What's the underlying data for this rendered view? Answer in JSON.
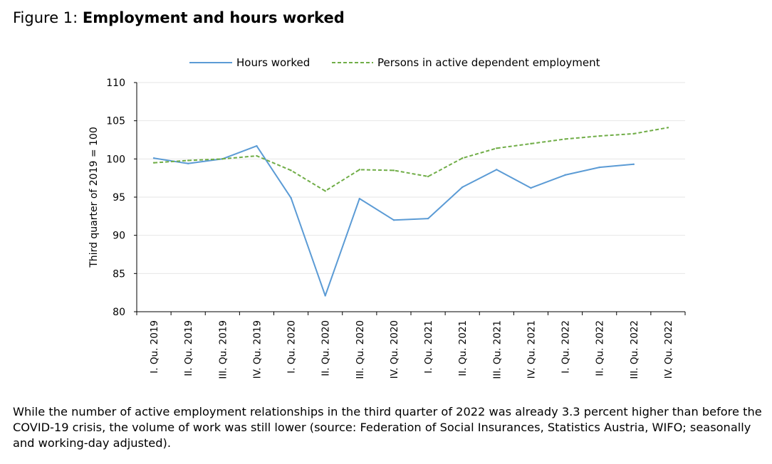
{
  "figure": {
    "prefix": "Figure 1: ",
    "title": "Employment and hours worked"
  },
  "caption": "While the number of active employment relationships in the third quarter of 2022 was already 3.3 percent higher than before the COVID-19 crisis, the volume of work was still lower (source: Federation of Social Insurances, Statistics Austria, WIFO; seasonally and working-day adjusted).",
  "chart_data": {
    "type": "line",
    "title": "Employment and hours worked",
    "xlabel": "",
    "ylabel": "Third quarter of 2019 = 100",
    "ylim": [
      80,
      110
    ],
    "yticks": [
      80,
      85,
      90,
      95,
      100,
      105,
      110
    ],
    "grid": true,
    "legend_position": "top",
    "categories": [
      "I. Qu. 2019",
      "II. Qu. 2019",
      "III. Qu. 2019",
      "IV. Qu. 2019",
      "I. Qu. 2020",
      "II. Qu. 2020",
      "III. Qu. 2020",
      "IV. Qu. 2020",
      "I. Qu. 2021",
      "II. Qu. 2021",
      "III. Qu. 2021",
      "IV. Qu. 2021",
      "I. Qu. 2022",
      "II. Qu. 2022",
      "III. Qu. 2022",
      "IV. Qu. 2022"
    ],
    "series": [
      {
        "name": "Hours worked",
        "color": "#5b9bd5",
        "dash": "solid",
        "values": [
          100.1,
          99.4,
          100.0,
          101.7,
          94.9,
          82.1,
          94.8,
          92.0,
          92.2,
          96.3,
          98.6,
          96.2,
          97.9,
          98.9,
          99.3,
          null
        ]
      },
      {
        "name": "Persons in active dependent employment",
        "color": "#70ad47",
        "dash": "dashed",
        "values": [
          99.5,
          99.8,
          100.0,
          100.4,
          98.5,
          95.8,
          98.6,
          98.5,
          97.7,
          100.1,
          101.4,
          102.0,
          102.6,
          103.0,
          103.3,
          104.1
        ]
      }
    ]
  }
}
